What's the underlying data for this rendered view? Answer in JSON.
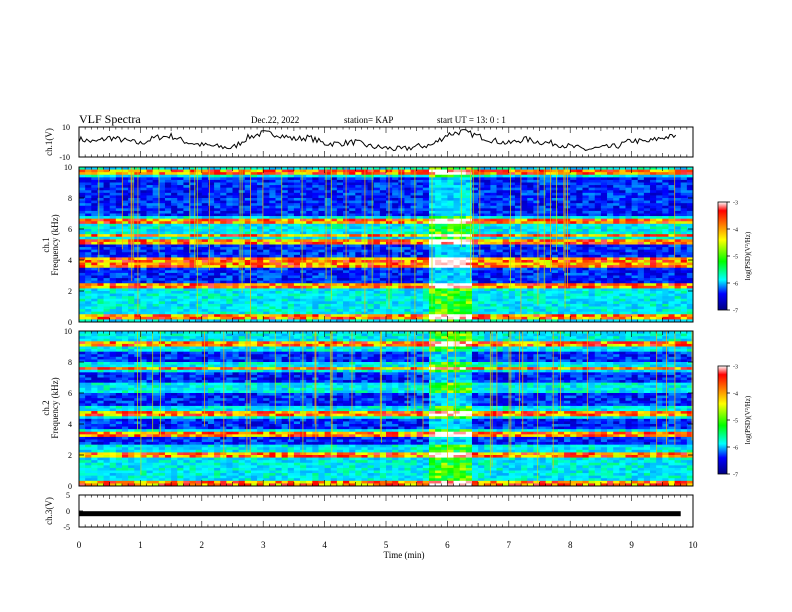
{
  "header": {
    "title": "VLF Spectra",
    "date": "Dec.22, 2022",
    "station": "station= KAP",
    "start": "start UT =  13: 0 : 1"
  },
  "chart_data": [
    {
      "type": "line",
      "panel": "ch1-waveform",
      "ylabel": "ch.1(V)",
      "ylim": [
        -10,
        10
      ],
      "yticks": [
        10,
        -10
      ],
      "xlim": [
        0,
        10
      ],
      "x": [
        0.0,
        0.25,
        0.5,
        0.75,
        1.0,
        1.25,
        1.5,
        1.75,
        2.0,
        2.25,
        2.5,
        2.75,
        3.0,
        3.25,
        3.5,
        3.75,
        4.0,
        4.25,
        4.5,
        4.75,
        5.0,
        5.25,
        5.5,
        5.75,
        6.0,
        6.25,
        6.5,
        6.75,
        7.0,
        7.25,
        7.5,
        7.75,
        8.0,
        8.25,
        8.5,
        8.75,
        9.0,
        9.25,
        9.5,
        9.75
      ],
      "y": [
        2,
        0,
        3,
        1,
        -1,
        3,
        4,
        0,
        -2,
        -3,
        -4,
        3,
        6,
        5,
        2,
        3,
        -1,
        -1,
        0,
        -3,
        -4,
        -5,
        -3,
        -2,
        5,
        7,
        4,
        1,
        -1,
        2,
        0,
        -1,
        -3,
        -5,
        -4,
        -3,
        1,
        0,
        3,
        4
      ]
    },
    {
      "type": "heatmap",
      "panel": "ch1-spectrogram",
      "title": "ch.1",
      "ylabel": "Frequency (kHz)",
      "ylim": [
        0,
        10
      ],
      "yticks": [
        0,
        2,
        4,
        6,
        8,
        10
      ],
      "xlim": [
        0,
        10
      ],
      "colorbar": {
        "label": "log(PSD)(V²/Hz)",
        "range": [
          -7,
          -3
        ],
        "ticks": [
          "-3",
          "-4",
          "-5",
          "-6",
          "-7"
        ]
      },
      "strong_lines_khz": [
        0.3,
        2.3,
        3.7,
        4.0,
        5.2,
        5.6,
        6.5,
        9.7
      ],
      "quiet_bands_khz": [
        [
          2.5,
          3.5
        ],
        [
          4.2,
          5.0
        ],
        [
          6.8,
          9.4
        ]
      ],
      "burst_interval_min": [
        5.7,
        6.35
      ]
    },
    {
      "type": "heatmap",
      "panel": "ch2-spectrogram",
      "title": "ch.2",
      "ylabel": "Frequency (kHz)",
      "ylim": [
        0,
        10
      ],
      "yticks": [
        0,
        2,
        4,
        6,
        8,
        10
      ],
      "xlim": [
        0,
        10
      ],
      "colorbar": {
        "label": "log(PSD)(V²/Hz)",
        "range": [
          -7,
          -3
        ],
        "ticks": [
          "-3",
          "-4",
          "-5",
          "-6",
          "-7"
        ]
      },
      "strong_lines_khz": [
        0.2,
        2.0,
        3.3,
        4.7,
        7.6,
        9.2
      ],
      "quiet_bands_khz": [
        [
          2.6,
          3.1
        ],
        [
          3.6,
          4.3
        ],
        [
          5.1,
          6.0
        ],
        [
          6.7,
          7.3
        ],
        [
          8.0,
          8.7
        ]
      ],
      "burst_interval_min": [
        5.7,
        6.35
      ]
    },
    {
      "type": "line",
      "panel": "ch3-signal",
      "ylabel": "ch.3(V)",
      "ylim": [
        -5,
        5
      ],
      "yticks": [
        5,
        0,
        -5
      ],
      "xlim": [
        0,
        10
      ],
      "xticks": [
        "0",
        "1",
        "2",
        "3",
        "4",
        "5",
        "6",
        "7",
        "8",
        "9",
        "10"
      ],
      "xlabel": "Time (min)",
      "x": [
        0,
        9.8
      ],
      "y": [
        -1,
        -1
      ]
    }
  ]
}
